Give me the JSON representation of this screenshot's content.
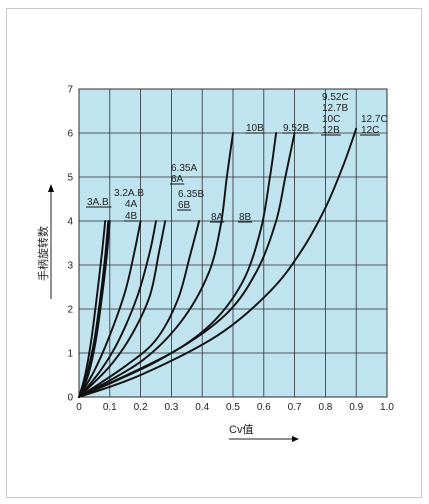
{
  "chart_data": {
    "type": "line",
    "xlabel": "Cv值",
    "ylabel": "手柄旋转数",
    "xlim": [
      0,
      1.0
    ],
    "ylim": [
      0,
      7
    ],
    "x_ticks": [
      "0",
      "0.1",
      "0.2",
      "0.3",
      "0.4",
      "0.5",
      "0.6",
      "0.7",
      "0.8",
      "0.9",
      "1.0"
    ],
    "y_ticks": [
      "0",
      "1",
      "2",
      "3",
      "4",
      "5",
      "6",
      "7"
    ],
    "grid": true,
    "background_color": "#bfe3ef",
    "line_color": "#111111",
    "series": [
      {
        "name": "3A.B",
        "points": [
          [
            0,
            0
          ],
          [
            0.02,
            0.5
          ],
          [
            0.04,
            1.3
          ],
          [
            0.06,
            2.4
          ],
          [
            0.075,
            3.3
          ],
          [
            0.085,
            4.0
          ]
        ]
      },
      {
        "name": "3.2A.B / 4A / 4B",
        "points": [
          [
            0,
            0
          ],
          [
            0.025,
            0.5
          ],
          [
            0.05,
            1.3
          ],
          [
            0.07,
            2.3
          ],
          [
            0.085,
            3.2
          ],
          [
            0.095,
            4.0
          ]
        ]
      },
      {
        "name": "4A / 4B",
        "points": [
          [
            0,
            0
          ],
          [
            0.03,
            0.5
          ],
          [
            0.055,
            1.3
          ],
          [
            0.075,
            2.3
          ],
          [
            0.09,
            3.2
          ],
          [
            0.1,
            4.0
          ]
        ]
      },
      {
        "name": "6.35A / 6A",
        "points": [
          [
            0,
            0
          ],
          [
            0.05,
            0.6
          ],
          [
            0.1,
            1.4
          ],
          [
            0.15,
            2.4
          ],
          [
            0.18,
            3.3
          ],
          [
            0.2,
            4.0
          ]
        ]
      },
      {
        "name": "6.35B / 6B",
        "points": [
          [
            0,
            0
          ],
          [
            0.07,
            0.6
          ],
          [
            0.13,
            1.3
          ],
          [
            0.19,
            2.3
          ],
          [
            0.23,
            3.3
          ],
          [
            0.25,
            4.0
          ]
        ]
      },
      {
        "name": "8A",
        "points": [
          [
            0,
            0
          ],
          [
            0.1,
            0.7
          ],
          [
            0.17,
            1.4
          ],
          [
            0.23,
            2.3
          ],
          [
            0.26,
            3.3
          ],
          [
            0.28,
            4.0
          ]
        ]
      },
      {
        "name": "8B",
        "points": [
          [
            0,
            0
          ],
          [
            0.15,
            0.7
          ],
          [
            0.25,
            1.3
          ],
          [
            0.32,
            2.2
          ],
          [
            0.36,
            3.2
          ],
          [
            0.39,
            4.0
          ]
        ]
      },
      {
        "name": "10B",
        "points": [
          [
            0,
            0
          ],
          [
            0.2,
            0.8
          ],
          [
            0.33,
            1.7
          ],
          [
            0.42,
            2.8
          ],
          [
            0.46,
            3.9
          ],
          [
            0.48,
            5.0
          ],
          [
            0.5,
            6.0
          ]
        ]
      },
      {
        "name": "9.52B / 12B",
        "points": [
          [
            0,
            0
          ],
          [
            0.25,
            0.8
          ],
          [
            0.42,
            1.6
          ],
          [
            0.53,
            2.6
          ],
          [
            0.59,
            3.8
          ],
          [
            0.62,
            5.0
          ],
          [
            0.64,
            6.0
          ]
        ]
      },
      {
        "name": "9.52C / 12.7B / 10C / 12B",
        "points": [
          [
            0,
            0
          ],
          [
            0.3,
            1.0
          ],
          [
            0.48,
            1.9
          ],
          [
            0.58,
            2.9
          ],
          [
            0.64,
            4.0
          ],
          [
            0.67,
            5.0
          ],
          [
            0.7,
            6.0
          ]
        ]
      },
      {
        "name": "12.7C / 12C",
        "points": [
          [
            0,
            0
          ],
          [
            0.2,
            0.5
          ],
          [
            0.45,
            1.4
          ],
          [
            0.62,
            2.4
          ],
          [
            0.72,
            3.3
          ],
          [
            0.8,
            4.3
          ],
          [
            0.86,
            5.3
          ],
          [
            0.9,
            6.1
          ]
        ]
      }
    ],
    "annotations": [
      {
        "text": "3A.B",
        "at": [
          0.085,
          4.0
        ]
      },
      {
        "text": "3.2A.B",
        "at": [
          0.095,
          4.0
        ]
      },
      {
        "text": "4A",
        "at": [
          0.095,
          4.0
        ]
      },
      {
        "text": "4B",
        "at": [
          0.1,
          4.0
        ]
      },
      {
        "text": "6.35A",
        "at": [
          0.2,
          4.0
        ]
      },
      {
        "text": "6A",
        "at": [
          0.2,
          4.0
        ]
      },
      {
        "text": "6.35B",
        "at": [
          0.25,
          4.0
        ]
      },
      {
        "text": "6B",
        "at": [
          0.25,
          4.0
        ]
      },
      {
        "text": "8A",
        "at": [
          0.28,
          4.0
        ]
      },
      {
        "text": "8B",
        "at": [
          0.39,
          4.0
        ]
      },
      {
        "text": "10B",
        "at": [
          0.5,
          6.0
        ]
      },
      {
        "text": "9.52B",
        "at": [
          0.64,
          6.0
        ]
      },
      {
        "text": "12B",
        "at": [
          0.7,
          6.0
        ]
      },
      {
        "text": "9.52C",
        "at": [
          0.7,
          6.0
        ]
      },
      {
        "text": "12.7B",
        "at": [
          0.7,
          6.0
        ]
      },
      {
        "text": "10C",
        "at": [
          0.7,
          6.0
        ]
      },
      {
        "text": "12.7C",
        "at": [
          0.9,
          6.1
        ]
      },
      {
        "text": "12C",
        "at": [
          0.9,
          6.1
        ]
      }
    ]
  }
}
